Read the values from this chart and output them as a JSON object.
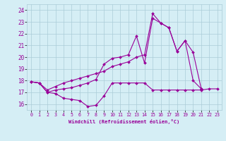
{
  "xlabel": "Windchill (Refroidissement éolien,°C)",
  "x_values": [
    0,
    1,
    2,
    3,
    4,
    5,
    6,
    7,
    8,
    9,
    10,
    11,
    12,
    13,
    14,
    15,
    16,
    17,
    18,
    19,
    20,
    21,
    22,
    23
  ],
  "series1": [
    17.9,
    17.8,
    17.0,
    16.9,
    16.5,
    16.4,
    16.3,
    15.8,
    15.9,
    16.7,
    17.8,
    17.8,
    17.8,
    17.8,
    17.8,
    17.2,
    17.2,
    17.2,
    17.2,
    17.2,
    17.2,
    17.2,
    17.3,
    17.3
  ],
  "series2": [
    17.9,
    17.8,
    17.0,
    17.2,
    17.3,
    17.4,
    17.6,
    17.8,
    18.1,
    19.4,
    19.9,
    20.0,
    20.2,
    21.8,
    19.5,
    23.3,
    22.9,
    22.5,
    20.5,
    21.4,
    18.0,
    17.3,
    null,
    null
  ],
  "series3": [
    17.9,
    17.8,
    17.2,
    17.5,
    17.8,
    18.0,
    18.2,
    18.4,
    18.6,
    18.8,
    19.2,
    19.4,
    19.6,
    20.0,
    20.2,
    23.7,
    22.9,
    22.5,
    20.5,
    21.4,
    20.4,
    17.3,
    null,
    null
  ],
  "line_color": "#990099",
  "bg_color": "#d5eef5",
  "grid_color": "#aaccd8",
  "ylim": [
    15.5,
    24.5
  ],
  "xlim": [
    -0.5,
    23.5
  ],
  "yticks": [
    16,
    17,
    18,
    19,
    20,
    21,
    22,
    23,
    24
  ],
  "xticks": [
    0,
    1,
    2,
    3,
    4,
    5,
    6,
    7,
    8,
    9,
    10,
    11,
    12,
    13,
    14,
    15,
    16,
    17,
    18,
    19,
    20,
    21,
    22,
    23
  ]
}
